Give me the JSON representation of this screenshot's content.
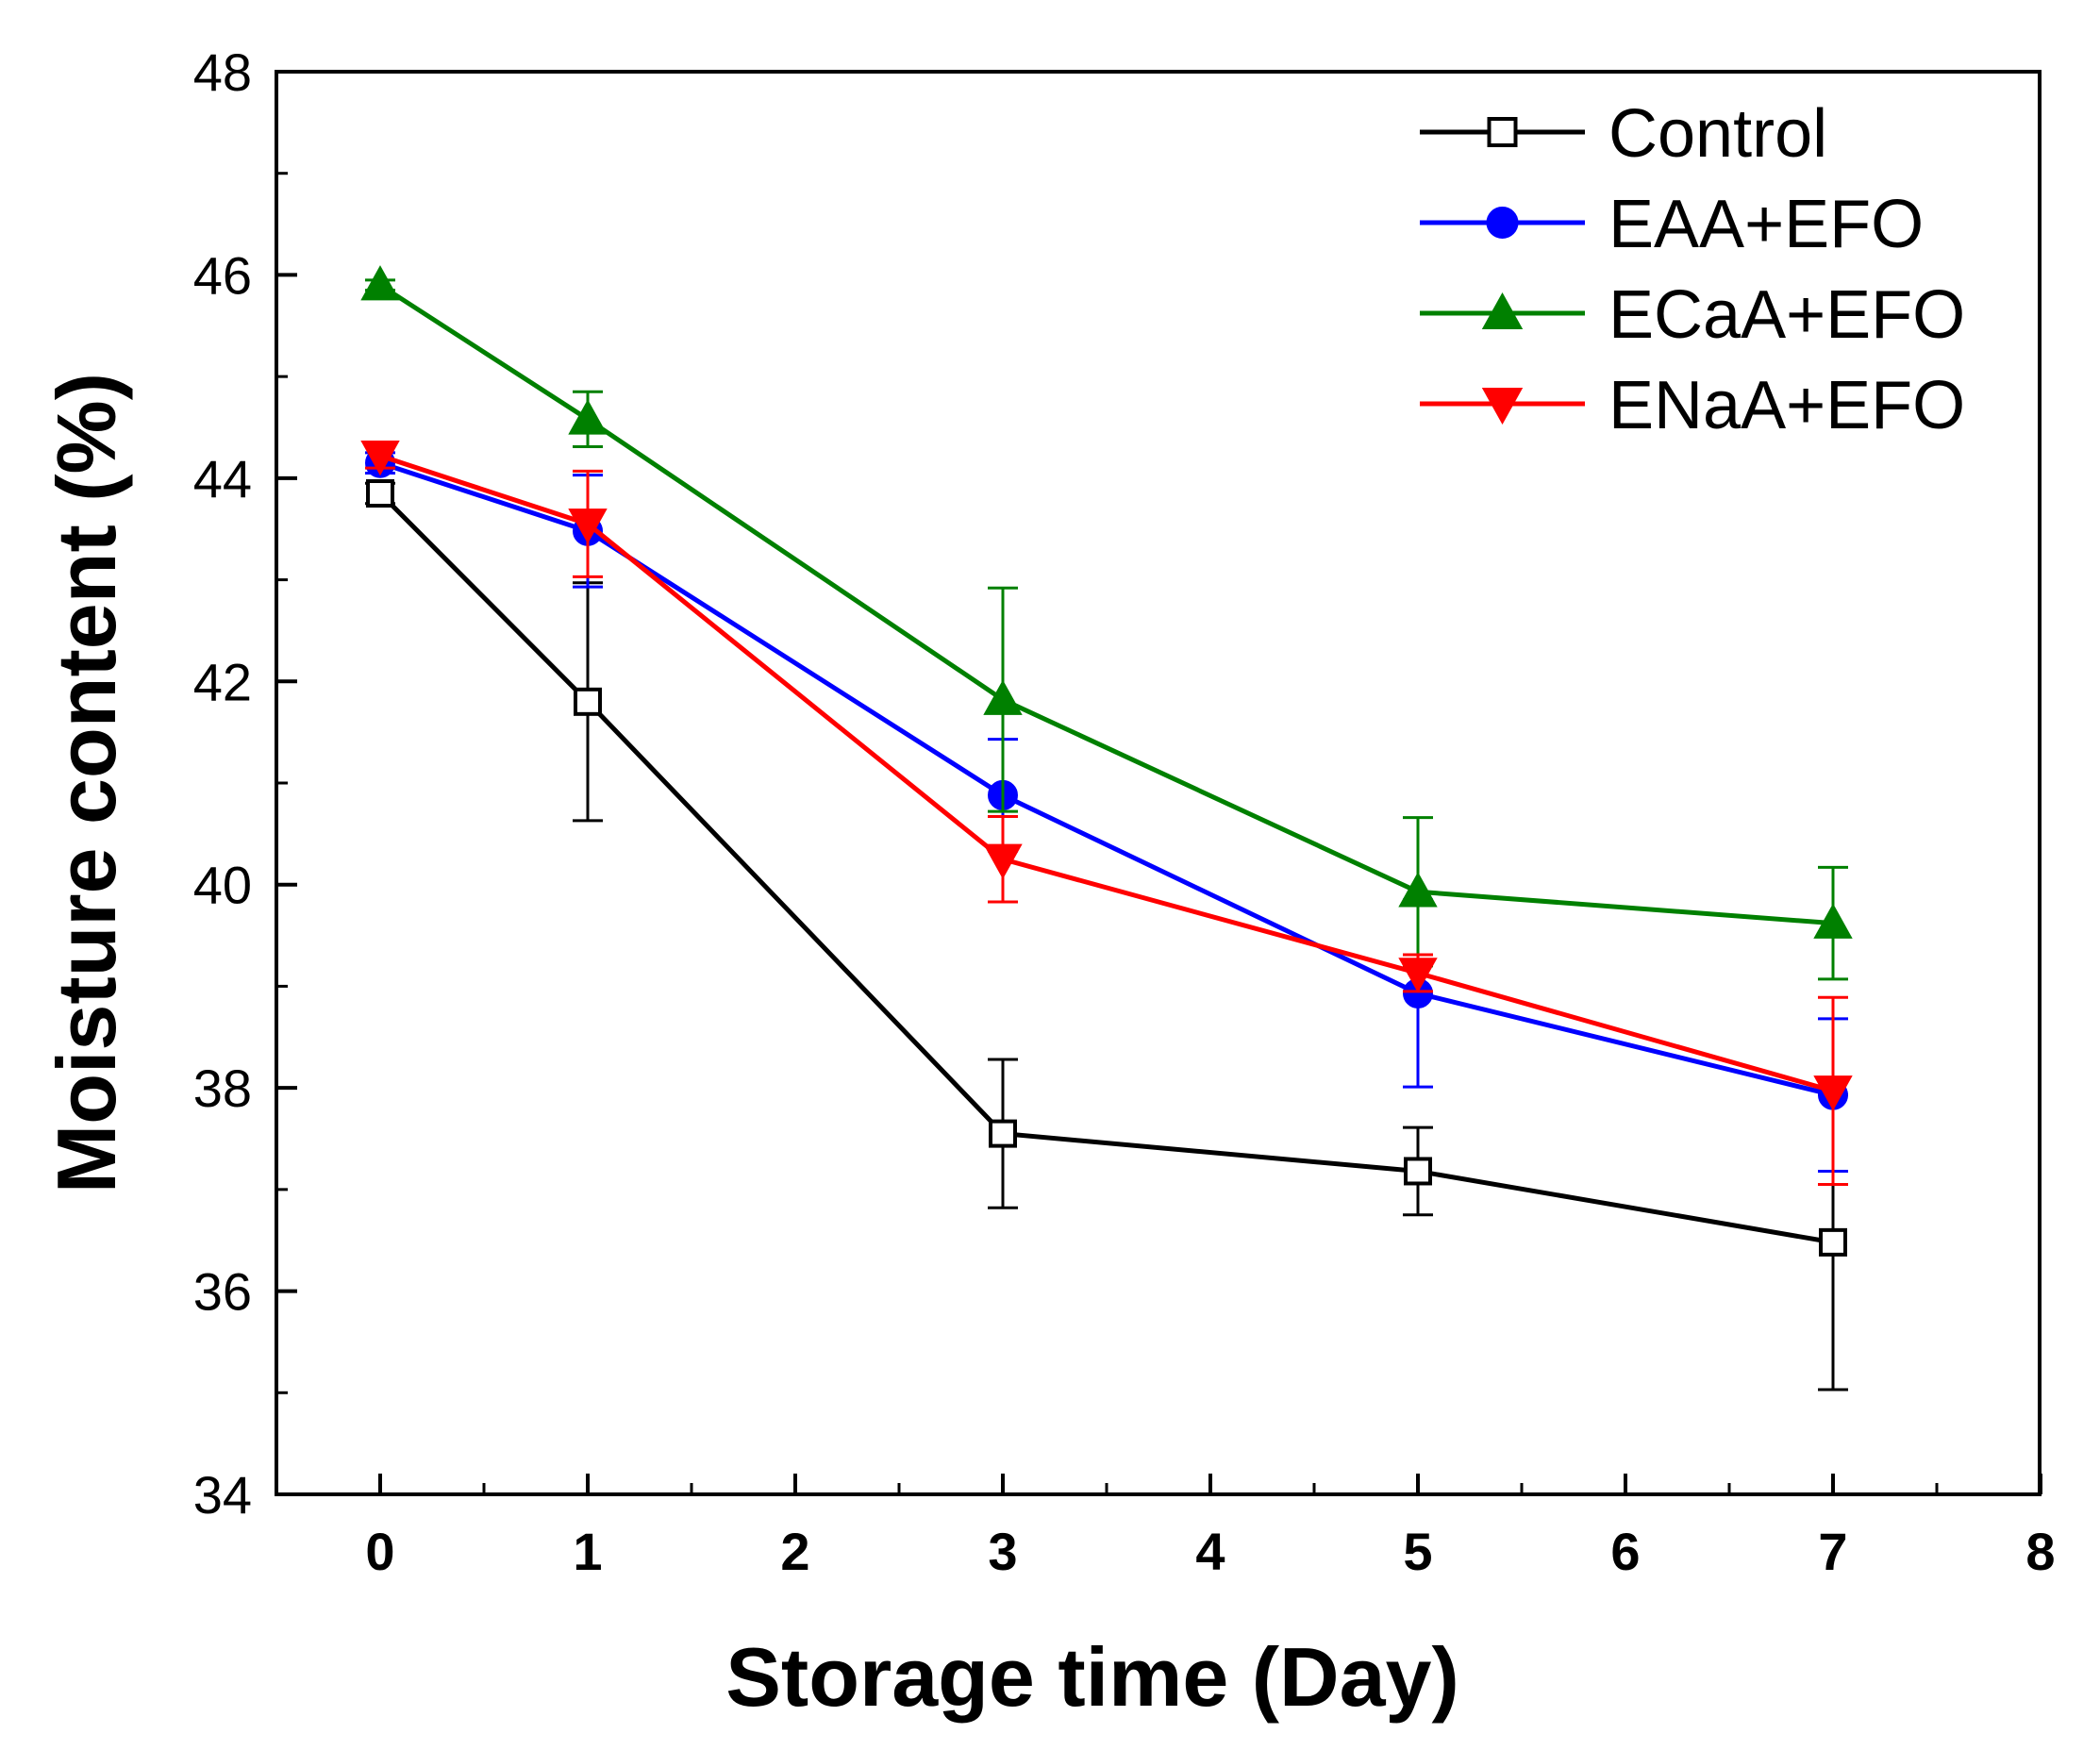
{
  "chart_data": {
    "type": "line",
    "title": "",
    "xlabel": "Storage time (Day)",
    "ylabel": "Moisture content (%)",
    "xlim": [
      -0.5,
      8
    ],
    "ylim": [
      34,
      48
    ],
    "x_ticks": [
      0,
      1,
      2,
      3,
      4,
      5,
      6,
      7,
      8
    ],
    "y_ticks": [
      34,
      36,
      38,
      40,
      42,
      44,
      46,
      48
    ],
    "grid": false,
    "legend_position": "top-right",
    "x": [
      0,
      1,
      3,
      5,
      7
    ],
    "series": [
      {
        "name": "Control",
        "color": "#000000",
        "marker": "open-square",
        "values": [
          43.85,
          41.8,
          37.55,
          37.18,
          36.48
        ],
        "errors": [
          0.1,
          1.17,
          0.73,
          0.43,
          1.45
        ]
      },
      {
        "name": "EAA+EFO",
        "color": "#0000ff",
        "marker": "circle",
        "values": [
          44.15,
          43.48,
          40.88,
          38.93,
          37.93
        ],
        "errors": [
          0.1,
          0.55,
          0.55,
          0.92,
          0.75
        ]
      },
      {
        "name": "ECaA+EFO",
        "color": "#008000",
        "marker": "triangle-up",
        "values": [
          45.9,
          44.58,
          41.82,
          39.93,
          39.62
        ],
        "errors": [
          0.05,
          0.27,
          1.1,
          0.73,
          0.55
        ]
      },
      {
        "name": "ENaA+EFO",
        "color": "#ff0000",
        "marker": "triangle-down",
        "values": [
          44.22,
          43.55,
          40.25,
          39.13,
          37.97
        ],
        "errors": [
          0.12,
          0.52,
          0.42,
          0.18,
          0.92
        ]
      }
    ]
  }
}
